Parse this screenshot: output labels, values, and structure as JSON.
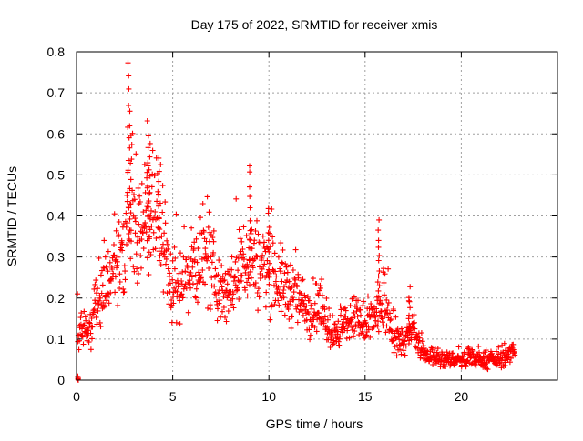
{
  "chart_data": {
    "type": "scatter",
    "title": "Day 175 of 2022, SRMTID for receiver xmis",
    "xlabel": "GPS time / hours",
    "ylabel": "SRMTID / TECUs",
    "xlim": [
      0,
      25
    ],
    "ylim": [
      0,
      0.8
    ],
    "xticks": [
      0,
      5,
      10,
      15,
      20
    ],
    "xtick_labels": [
      "0",
      "5",
      "10",
      "15",
      "20"
    ],
    "yticks": [
      0,
      0.1,
      0.2,
      0.3,
      0.4,
      0.5,
      0.6,
      0.7,
      0.8
    ],
    "ytick_labels": [
      "0",
      "0.1",
      "0.2",
      "0.3",
      "0.4",
      "0.5",
      "0.6",
      "0.7",
      "0.8"
    ],
    "grid": true,
    "marker": "plus",
    "series": [
      {
        "name": "SRMTID",
        "color": "#ff0000",
        "points_note": "trend (hour, TECU) plus scattered spread; dense cloud of ~1 point per receiver-satellite epoch",
        "trend": [
          [
            0.0,
            0.12
          ],
          [
            0.3,
            0.12
          ],
          [
            0.6,
            0.11
          ],
          [
            1.0,
            0.18
          ],
          [
            1.5,
            0.22
          ],
          [
            2.0,
            0.28
          ],
          [
            2.5,
            0.33
          ],
          [
            2.8,
            0.42
          ],
          [
            3.2,
            0.38
          ],
          [
            3.6,
            0.4
          ],
          [
            4.0,
            0.42
          ],
          [
            4.4,
            0.4
          ],
          [
            4.8,
            0.24
          ],
          [
            5.2,
            0.22
          ],
          [
            5.6,
            0.25
          ],
          [
            6.0,
            0.27
          ],
          [
            6.5,
            0.3
          ],
          [
            7.0,
            0.27
          ],
          [
            7.5,
            0.22
          ],
          [
            8.0,
            0.22
          ],
          [
            8.5,
            0.27
          ],
          [
            9.0,
            0.3
          ],
          [
            9.5,
            0.28
          ],
          [
            10.0,
            0.28
          ],
          [
            10.5,
            0.24
          ],
          [
            11.0,
            0.22
          ],
          [
            11.5,
            0.2
          ],
          [
            12.0,
            0.17
          ],
          [
            12.5,
            0.18
          ],
          [
            13.0,
            0.14
          ],
          [
            13.5,
            0.1
          ],
          [
            14.0,
            0.14
          ],
          [
            14.5,
            0.15
          ],
          [
            15.0,
            0.12
          ],
          [
            15.5,
            0.16
          ],
          [
            16.0,
            0.18
          ],
          [
            16.5,
            0.1
          ],
          [
            17.0,
            0.09
          ],
          [
            17.5,
            0.12
          ],
          [
            18.0,
            0.06
          ],
          [
            18.5,
            0.06
          ],
          [
            19.0,
            0.05
          ],
          [
            19.5,
            0.05
          ],
          [
            20.0,
            0.05
          ],
          [
            20.5,
            0.05
          ],
          [
            21.0,
            0.05
          ],
          [
            21.5,
            0.05
          ],
          [
            22.0,
            0.05
          ],
          [
            22.5,
            0.06
          ],
          [
            22.8,
            0.08
          ]
        ],
        "peaks": [
          [
            0.0,
            0.0
          ],
          [
            2.7,
            0.79
          ],
          [
            2.8,
            0.67
          ],
          [
            3.7,
            0.64
          ],
          [
            3.8,
            0.59
          ],
          [
            4.3,
            0.55
          ],
          [
            9.0,
            0.54
          ],
          [
            10.0,
            0.43
          ],
          [
            15.7,
            0.4
          ],
          [
            17.3,
            0.23
          ]
        ]
      }
    ]
  }
}
